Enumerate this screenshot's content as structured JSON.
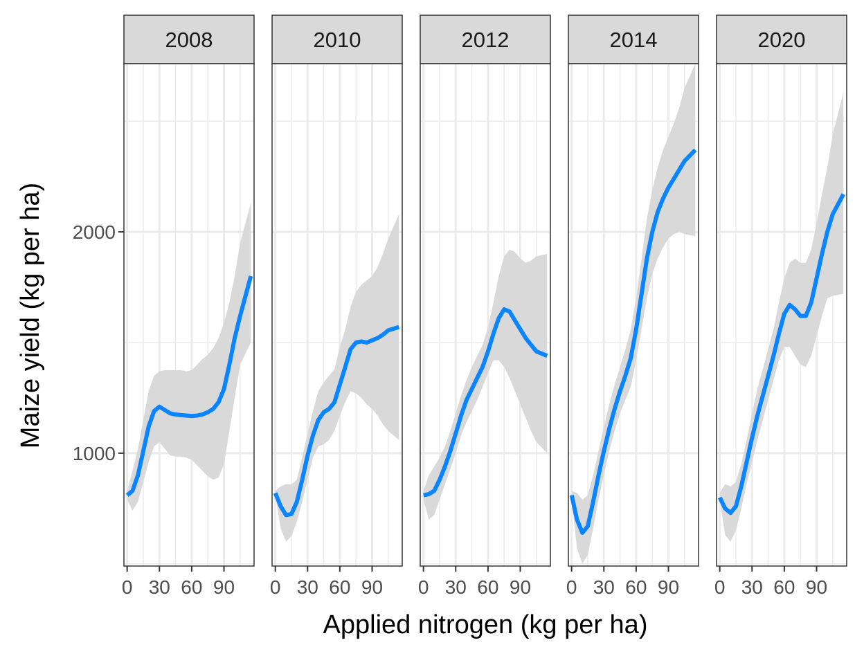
{
  "chart_data": {
    "type": "line",
    "facet_variable": "year",
    "xlabel": "Applied nitrogen (kg per ha)",
    "ylabel": "Maize yield (kg per ha)",
    "xlim": [
      -3,
      118
    ],
    "ylim": [
      490,
      2760
    ],
    "x_ticks": [
      0,
      30,
      60,
      90
    ],
    "x_tick_labels": [
      "0",
      "30",
      "60",
      "90"
    ],
    "y_ticks": [
      1000,
      2000
    ],
    "y_tick_labels": [
      "1000",
      "2000"
    ],
    "y_minor_gridlines": [
      500,
      1500,
      2500
    ],
    "x_minor_gridlines": [
      15,
      45,
      75,
      105
    ],
    "grid": true,
    "line_color": "#0A84FF",
    "band_color": "#D9D9D9",
    "strip_fill": "#D9D9D9",
    "panels": [
      {
        "label": "2008",
        "x": [
          0,
          5,
          10,
          15,
          20,
          25,
          30,
          35,
          40,
          45,
          50,
          55,
          60,
          65,
          70,
          75,
          80,
          85,
          90,
          95,
          100,
          105,
          115
        ],
        "y": [
          810,
          830,
          900,
          1010,
          1120,
          1190,
          1210,
          1195,
          1180,
          1175,
          1172,
          1170,
          1168,
          1170,
          1175,
          1185,
          1200,
          1230,
          1290,
          1400,
          1520,
          1620,
          1800
        ],
        "lower": [
          790,
          740,
          780,
          870,
          960,
          1030,
          1050,
          1020,
          990,
          985,
          985,
          980,
          970,
          945,
          920,
          895,
          880,
          890,
          950,
          1100,
          1250,
          1400,
          1500
        ],
        "upper": [
          830,
          920,
          1020,
          1150,
          1280,
          1350,
          1370,
          1375,
          1375,
          1375,
          1375,
          1370,
          1375,
          1400,
          1425,
          1445,
          1475,
          1520,
          1590,
          1680,
          1800,
          1950,
          2130
        ]
      },
      {
        "label": "2010",
        "x": [
          0,
          5,
          10,
          15,
          20,
          25,
          30,
          35,
          40,
          45,
          50,
          55,
          60,
          65,
          70,
          75,
          80,
          85,
          90,
          95,
          100,
          105,
          115
        ],
        "y": [
          820,
          760,
          720,
          725,
          780,
          880,
          990,
          1080,
          1150,
          1185,
          1200,
          1230,
          1310,
          1390,
          1470,
          1500,
          1505,
          1500,
          1510,
          1520,
          1535,
          1555,
          1570
        ],
        "lower": [
          810,
          660,
          600,
          625,
          690,
          780,
          880,
          980,
          1030,
          1040,
          1060,
          1100,
          1170,
          1230,
          1280,
          1270,
          1250,
          1220,
          1200,
          1170,
          1130,
          1100,
          1060
        ],
        "upper": [
          830,
          850,
          860,
          860,
          880,
          980,
          1090,
          1190,
          1280,
          1320,
          1350,
          1380,
          1480,
          1560,
          1660,
          1730,
          1760,
          1780,
          1800,
          1840,
          1900,
          1970,
          2080
        ]
      },
      {
        "label": "2012",
        "x": [
          0,
          5,
          10,
          15,
          20,
          25,
          30,
          35,
          40,
          45,
          50,
          55,
          60,
          65,
          70,
          75,
          80,
          85,
          90,
          95,
          100,
          105,
          115
        ],
        "y": [
          810,
          815,
          830,
          880,
          940,
          1010,
          1090,
          1170,
          1240,
          1290,
          1340,
          1390,
          1460,
          1540,
          1610,
          1650,
          1640,
          1600,
          1560,
          1520,
          1490,
          1460,
          1440
        ],
        "lower": [
          790,
          700,
          720,
          790,
          860,
          930,
          1000,
          1080,
          1140,
          1190,
          1240,
          1300,
          1360,
          1420,
          1420,
          1390,
          1340,
          1280,
          1220,
          1160,
          1100,
          1050,
          1000
        ],
        "upper": [
          830,
          900,
          940,
          980,
          1030,
          1100,
          1180,
          1260,
          1330,
          1390,
          1440,
          1490,
          1570,
          1680,
          1800,
          1890,
          1920,
          1910,
          1880,
          1860,
          1870,
          1890,
          1900
        ]
      },
      {
        "label": "2014",
        "x": [
          0,
          5,
          10,
          15,
          20,
          25,
          30,
          35,
          40,
          45,
          50,
          55,
          60,
          65,
          70,
          75,
          80,
          85,
          90,
          95,
          100,
          105,
          115
        ],
        "y": [
          810,
          700,
          640,
          670,
          780,
          900,
          1010,
          1110,
          1200,
          1280,
          1350,
          1430,
          1560,
          1720,
          1880,
          2000,
          2090,
          2150,
          2200,
          2240,
          2280,
          2320,
          2370
        ],
        "lower": [
          790,
          570,
          500,
          540,
          660,
          790,
          900,
          1010,
          1100,
          1180,
          1240,
          1300,
          1420,
          1560,
          1700,
          1810,
          1880,
          1930,
          1970,
          1990,
          2000,
          1990,
          1980
        ],
        "upper": [
          830,
          820,
          790,
          810,
          900,
          1010,
          1120,
          1220,
          1310,
          1390,
          1470,
          1560,
          1700,
          1880,
          2060,
          2190,
          2290,
          2370,
          2430,
          2490,
          2560,
          2650,
          2760
        ]
      },
      {
        "label": "2020",
        "x": [
          0,
          5,
          10,
          15,
          20,
          25,
          30,
          35,
          40,
          45,
          50,
          55,
          60,
          65,
          70,
          75,
          80,
          85,
          90,
          95,
          100,
          105,
          115
        ],
        "y": [
          800,
          750,
          730,
          760,
          850,
          960,
          1070,
          1170,
          1260,
          1350,
          1440,
          1540,
          1630,
          1670,
          1650,
          1620,
          1620,
          1680,
          1790,
          1900,
          2000,
          2080,
          2170
        ],
        "lower": [
          790,
          630,
          600,
          650,
          750,
          860,
          960,
          1060,
          1150,
          1240,
          1330,
          1420,
          1480,
          1480,
          1440,
          1400,
          1390,
          1440,
          1530,
          1620,
          1700,
          1710,
          1720
        ],
        "upper": [
          820,
          860,
          850,
          870,
          950,
          1060,
          1180,
          1290,
          1380,
          1470,
          1560,
          1680,
          1790,
          1860,
          1880,
          1860,
          1860,
          1920,
          2040,
          2170,
          2290,
          2440,
          2630
        ]
      }
    ]
  }
}
